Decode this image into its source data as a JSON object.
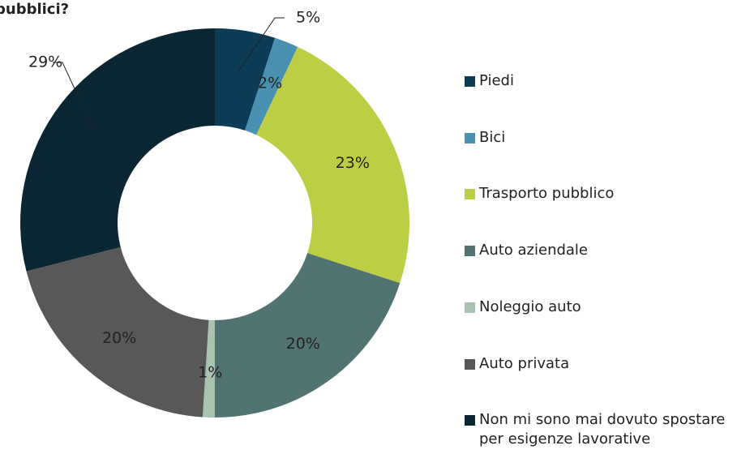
{
  "chart_data": {
    "type": "donut",
    "title": "pubblici?",
    "categories": [
      "Piedi",
      "Bici",
      "Trasporto pubblico",
      "Auto aziendale",
      "Noleggio auto",
      "Auto privata",
      "Non mi sono mai dovuto spostare per esigenze lavorative"
    ],
    "values": [
      5,
      2,
      23,
      20,
      1,
      20,
      29
    ],
    "value_labels": [
      "5%",
      "2%",
      "23%",
      "20%",
      "1%",
      "20%",
      "29%"
    ],
    "colors": [
      "#0d3d56",
      "#4a90b0",
      "#bccf44",
      "#4f7471",
      "#a8c4b0",
      "#585858",
      "#0b2633"
    ],
    "legend": "right"
  }
}
